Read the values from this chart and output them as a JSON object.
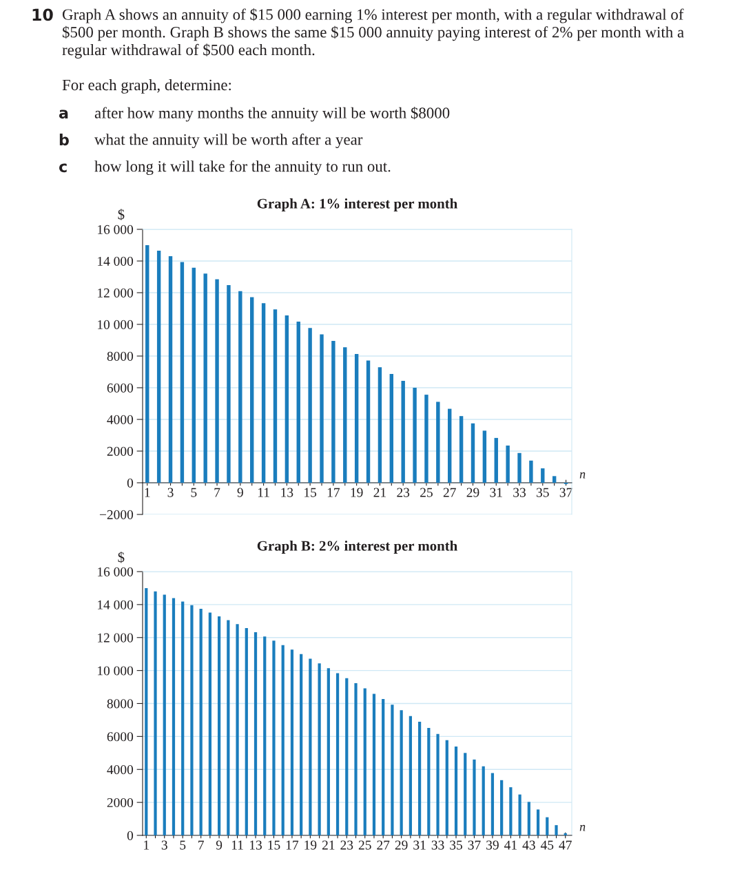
{
  "chart_data": [
    {
      "type": "bar",
      "title": "Graph A: 1% interest per month",
      "ylabel": "$",
      "xlabel": "n",
      "color": "#1a7dbd",
      "annotations": [
        "10",
        "Graph A shows an annuity of $15 000 earning 1% interest per month, with a regular withdrawal of $500 per month. Graph B shows the same $15 000 annuity paying interest of 2% per month with a regular withdrawal of $500 each month.",
        "For each graph, determine:",
        "a",
        "after how many months the annuity will be worth $8000",
        "b",
        "what the annuity will be worth after a year",
        "c",
        "how long it will take for the annuity to run out."
      ],
      "x": [
        1,
        2,
        3,
        4,
        5,
        6,
        7,
        8,
        9,
        10,
        11,
        12,
        13,
        14,
        15,
        16,
        17,
        18,
        19,
        20,
        21,
        22,
        23,
        24,
        25,
        26,
        27,
        28,
        29,
        30,
        31,
        32,
        33,
        34,
        35,
        36,
        37
      ],
      "values": [
        15000,
        14650,
        14300,
        13940,
        13580,
        13210,
        12850,
        12480,
        12100,
        11720,
        11340,
        10950,
        10560,
        10170,
        9770,
        9370,
        8960,
        8550,
        8130,
        7720,
        7290,
        6870,
        6440,
        6000,
        5560,
        5110,
        4670,
        4210,
        3750,
        3290,
        2830,
        2350,
        1880,
        1400,
        910,
        420,
        -80
      ],
      "xlim": [
        0.6,
        37.5
      ],
      "xticks": [
        1,
        {
          "value": 2,
          "label": null
        },
        3,
        {
          "value": 4,
          "label": null
        },
        5,
        {
          "value": 6,
          "label": null
        },
        7,
        {
          "value": 8,
          "label": null
        },
        9,
        {
          "value": 10,
          "label": null
        },
        11,
        {
          "value": 12,
          "label": null
        },
        13,
        {
          "value": 14,
          "label": null
        },
        15,
        {
          "value": 16,
          "label": null
        },
        17,
        {
          "value": 18,
          "label": null
        },
        19,
        {
          "value": 20,
          "label": null
        },
        21,
        {
          "value": 22,
          "label": null
        },
        23,
        {
          "value": 24,
          "label": null
        },
        25,
        {
          "value": 26,
          "label": null
        },
        27,
        {
          "value": 28,
          "label": null
        },
        29,
        {
          "value": 30,
          "label": null
        },
        31,
        {
          "value": 32,
          "label": null
        },
        33,
        {
          "value": 34,
          "label": null
        },
        35,
        {
          "value": 36,
          "label": null
        },
        37
      ],
      "ylim": [
        -2000,
        16000
      ],
      "yticks": [
        {
          "value": -2000,
          "label": "−2000"
        },
        0,
        2000,
        4000,
        6000,
        8000,
        {
          "value": 10000,
          "label": "10 000"
        },
        {
          "value": 12000,
          "label": "12 000"
        },
        {
          "value": 14000,
          "label": "14 000"
        },
        {
          "value": 16000,
          "label": "16 000"
        }
      ],
      "grid": "y"
    },
    {
      "type": "bar",
      "title": "Graph B: 2% interest per month",
      "ylabel": "$",
      "xlabel": "n",
      "color": "#1a7dbd",
      "x": [
        1,
        2,
        3,
        4,
        5,
        6,
        7,
        8,
        9,
        10,
        11,
        12,
        13,
        14,
        15,
        16,
        17,
        18,
        19,
        20,
        21,
        22,
        23,
        24,
        25,
        26,
        27,
        28,
        29,
        30,
        31,
        32,
        33,
        34,
        35,
        36,
        37,
        38,
        39,
        40,
        41,
        42,
        43,
        44,
        45,
        46,
        47
      ],
      "values": [
        15000,
        14800,
        14600,
        14390,
        14180,
        13960,
        13740,
        13510,
        13280,
        13050,
        12810,
        12570,
        12320,
        12060,
        11810,
        11540,
        11270,
        11000,
        10720,
        10430,
        10140,
        9840,
        9540,
        9230,
        8920,
        8590,
        8270,
        7930,
        7590,
        7240,
        6890,
        6520,
        6150,
        5780,
        5390,
        5000,
        4600,
        4190,
        3780,
        3350,
        2920,
        2480,
        2030,
        1570,
        1100,
        620,
        130
      ],
      "xlim": [
        0.6,
        47.7
      ],
      "xticks": [
        1,
        {
          "value": 2,
          "label": null
        },
        3,
        {
          "value": 4,
          "label": null
        },
        5,
        {
          "value": 6,
          "label": null
        },
        7,
        {
          "value": 8,
          "label": null
        },
        9,
        {
          "value": 10,
          "label": null
        },
        11,
        {
          "value": 12,
          "label": null
        },
        13,
        {
          "value": 14,
          "label": null
        },
        15,
        {
          "value": 16,
          "label": null
        },
        17,
        {
          "value": 18,
          "label": null
        },
        19,
        {
          "value": 20,
          "label": null
        },
        21,
        {
          "value": 22,
          "label": null
        },
        23,
        {
          "value": 24,
          "label": null
        },
        25,
        {
          "value": 26,
          "label": null
        },
        27,
        {
          "value": 28,
          "label": null
        },
        29,
        {
          "value": 30,
          "label": null
        },
        31,
        {
          "value": 32,
          "label": null
        },
        33,
        {
          "value": 34,
          "label": null
        },
        35,
        {
          "value": 36,
          "label": null
        },
        37,
        {
          "value": 38,
          "label": null
        },
        39,
        {
          "value": 40,
          "label": null
        },
        41,
        {
          "value": 42,
          "label": null
        },
        43,
        {
          "value": 44,
          "label": null
        },
        45,
        {
          "value": 46,
          "label": null
        },
        47
      ],
      "ylim": [
        0,
        16000
      ],
      "yticks": [
        0,
        2000,
        4000,
        6000,
        8000,
        {
          "value": 10000,
          "label": "10 000"
        },
        {
          "value": 12000,
          "label": "12 000"
        },
        {
          "value": 14000,
          "label": "14 000"
        },
        {
          "value": 16000,
          "label": "16 000"
        }
      ],
      "grid": "y"
    }
  ]
}
